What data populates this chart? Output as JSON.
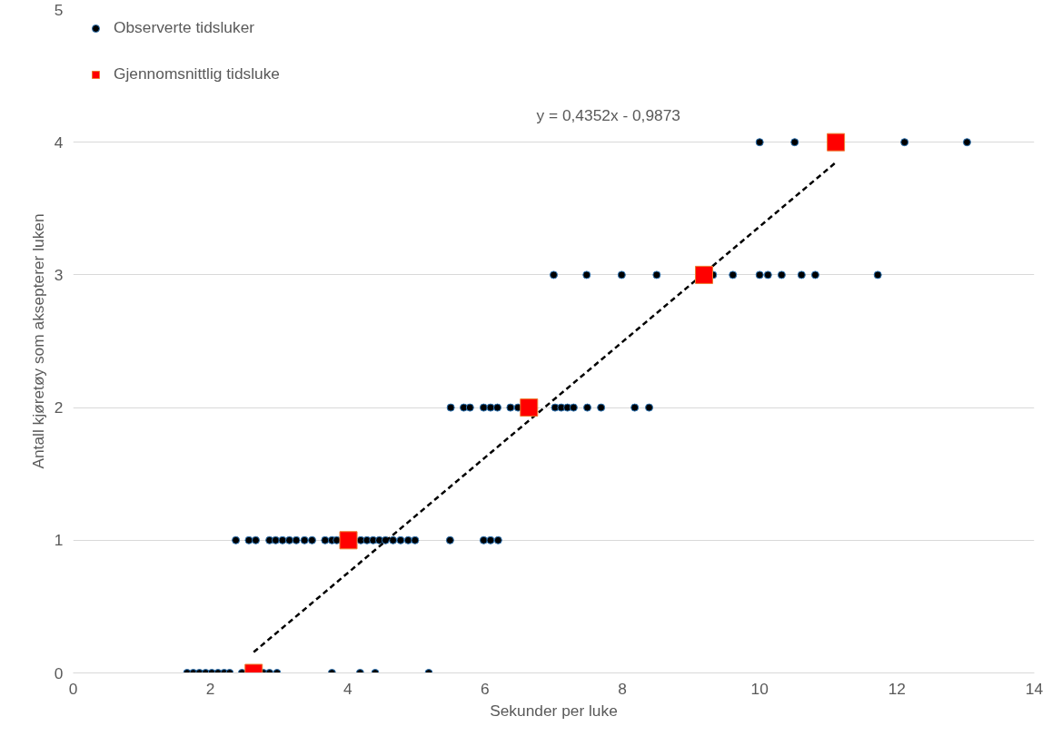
{
  "chart_data": {
    "type": "scatter",
    "xlabel": "Sekunder per luke",
    "ylabel": "Antall kjøretøy som aksepterer luken",
    "xlim": [
      0,
      14
    ],
    "ylim": [
      0,
      5
    ],
    "xticks": [
      0,
      2,
      4,
      6,
      8,
      10,
      12,
      14
    ],
    "yticks": [
      0,
      1,
      2,
      3,
      4,
      5
    ],
    "grid": "y",
    "legend": "top left",
    "annotations": [
      "y = 0,4352x - 0,9873"
    ],
    "series": [
      {
        "name": "Observerte tidsluker",
        "color": "#000000",
        "marker": "circle",
        "x": [
          1.66,
          1.75,
          1.84,
          1.93,
          2.02,
          2.11,
          2.2,
          2.28,
          2.46,
          2.77,
          2.86,
          2.97,
          3.77,
          4.18,
          4.4,
          5.18,
          2.37,
          2.56,
          2.66,
          2.86,
          2.95,
          3.05,
          3.15,
          3.25,
          3.37,
          3.48,
          3.67,
          3.77,
          3.84,
          4.19,
          4.28,
          4.37,
          4.46,
          4.55,
          4.66,
          4.77,
          4.88,
          4.98,
          5.49,
          5.98,
          6.08,
          6.19,
          5.5,
          5.69,
          5.78,
          5.98,
          6.08,
          6.18,
          6.37,
          6.48,
          7.02,
          7.11,
          7.2,
          7.29,
          7.49,
          7.69,
          8.18,
          8.39,
          7.0,
          7.48,
          7.99,
          8.5,
          9.32,
          9.61,
          10.0,
          10.12,
          10.32,
          10.61,
          10.81,
          11.72,
          10.0,
          10.51,
          12.11,
          13.02
        ],
        "values": [
          0,
          0,
          0,
          0,
          0,
          0,
          0,
          0,
          0,
          0,
          0,
          0,
          0,
          0,
          0,
          0,
          1,
          1,
          1,
          1,
          1,
          1,
          1,
          1,
          1,
          1,
          1,
          1,
          1,
          1,
          1,
          1,
          1,
          1,
          1,
          1,
          1,
          1,
          1,
          1,
          1,
          1,
          2,
          2,
          2,
          2,
          2,
          2,
          2,
          2,
          2,
          2,
          2,
          2,
          2,
          2,
          2,
          2,
          3,
          3,
          3,
          3,
          3,
          3,
          3,
          3,
          3,
          3,
          3,
          3,
          4,
          4,
          4,
          4
        ]
      },
      {
        "type": "line",
        "color": "#000000",
        "line_style": "dashed",
        "marker": "none",
        "x": [
          2.63,
          11.11
        ],
        "values": [
          0.157,
          3.848
        ]
      },
      {
        "name": "Gjennomsnittlig tidsluke",
        "color": "#ff0000",
        "marker": "square",
        "x": [
          2.63,
          4.01,
          6.64,
          9.19,
          11.11
        ],
        "values": [
          0,
          1,
          2,
          3,
          4
        ]
      }
    ]
  }
}
